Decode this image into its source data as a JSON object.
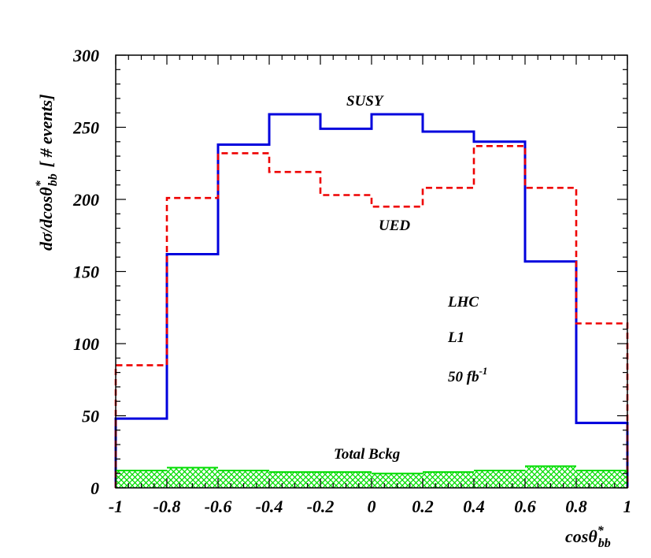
{
  "chart_data": {
    "type": "histogram",
    "xlabel": "cosθ",
    "xlabel_sup": "*",
    "xlabel_sub": "bb",
    "ylabel": "dσ/dcosθ",
    "ylabel_sup": "*",
    "ylabel_sub": "bb",
    "ylabel_suffix": "[ # events]",
    "xlim": [
      -1,
      1
    ],
    "ylim": [
      0,
      300
    ],
    "xticks": [
      "-1",
      "-0.8",
      "-0.6",
      "-0.4",
      "-0.2",
      "0",
      "0.2",
      "0.4",
      "0.6",
      "0.8",
      "1"
    ],
    "yticks": [
      "0",
      "50",
      "100",
      "150",
      "200",
      "250",
      "300"
    ],
    "bin_edges": [
      -1,
      -0.8,
      -0.6,
      -0.4,
      -0.2,
      0,
      0.2,
      0.4,
      0.6,
      0.8,
      1
    ],
    "series": [
      {
        "name": "SUSY",
        "style": "solid",
        "color": "#0000dd",
        "values": [
          48,
          162,
          238,
          259,
          249,
          259,
          247,
          240,
          157,
          45
        ]
      },
      {
        "name": "UED",
        "style": "dashed",
        "color": "#ee0000",
        "values": [
          85,
          201,
          232,
          219,
          203,
          195,
          208,
          237,
          208,
          114
        ]
      },
      {
        "name": "Total Bckg",
        "style": "hatched",
        "color": "#00dd00",
        "values": [
          12,
          14,
          12,
          11,
          11,
          10,
          11,
          12,
          15,
          12
        ]
      }
    ],
    "annotations": {
      "susy": "SUSY",
      "ued": "UED",
      "bckg": "Total Bckg",
      "lhc": "LHC",
      "l1": "L1",
      "lumi": "50 fb",
      "lumi_sup": "-1"
    }
  }
}
